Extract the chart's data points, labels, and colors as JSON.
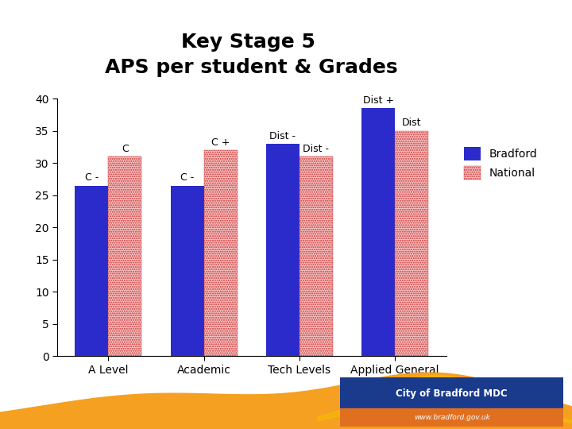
{
  "title_line1": "Key Stage 5 ",
  "title_line2": "APS per student & Grades",
  "categories": [
    "A Level",
    "Academic",
    "Tech Levels",
    "Applied General"
  ],
  "bradford_values": [
    26.5,
    26.5,
    33.0,
    38.5
  ],
  "national_values": [
    31.0,
    32.0,
    31.0,
    35.0
  ],
  "bradford_labels": [
    "C -",
    "C -",
    "Dist -",
    "Dist +"
  ],
  "national_labels": [
    "C",
    "C +",
    "Dist -",
    "Dist"
  ],
  "bradford_blue": "#2b2bcc",
  "national_face": "#f5c5c5",
  "national_edge": "#cc3333",
  "ylim": [
    0,
    40
  ],
  "yticks": [
    0,
    5,
    10,
    15,
    20,
    25,
    30,
    35,
    40
  ],
  "bar_width": 0.35,
  "legend_labels": [
    "Bradford",
    "National"
  ],
  "background_color": "#ffffff",
  "title_fontsize": 18,
  "axis_fontsize": 10,
  "label_fontsize": 9,
  "tick_fontsize": 10,
  "orange_color": "#f5a020",
  "orange_yellow": "#f5c000",
  "badge_blue": "#1a3a8c",
  "badge_orange": "#e07020"
}
